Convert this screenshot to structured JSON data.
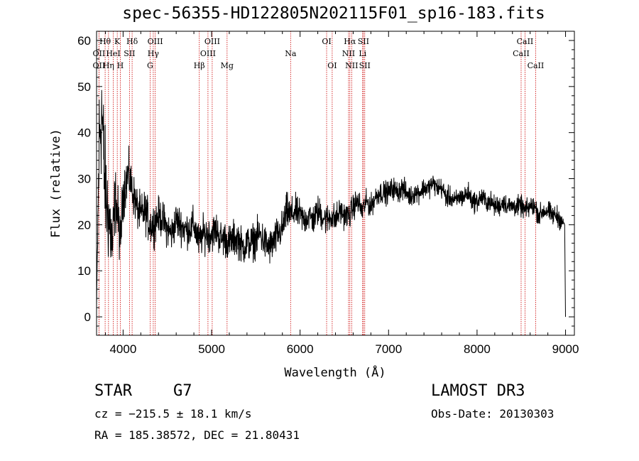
{
  "chart_data": {
    "type": "line",
    "title": "spec-56355-HD122805N202115F01_sp16-183.fits",
    "xlabel": "Wavelength (Å)",
    "ylabel": "Flux (relative)",
    "xlim": [
      3700,
      9100
    ],
    "ylim": [
      -4,
      62
    ],
    "xticks": [
      4000,
      5000,
      6000,
      7000,
      8000,
      9000
    ],
    "yticks": [
      0,
      10,
      20,
      30,
      40,
      50,
      60
    ],
    "grid": false,
    "series": [
      {
        "name": "flux",
        "x": [
          3700,
          3730,
          3760,
          3790,
          3820,
          3850,
          3880,
          3910,
          3940,
          3970,
          4000,
          4030,
          4060,
          4100,
          4150,
          4200,
          4250,
          4300,
          4340,
          4400,
          4450,
          4500,
          4550,
          4600,
          4650,
          4700,
          4750,
          4800,
          4861,
          4900,
          4950,
          5000,
          5050,
          5100,
          5150,
          5200,
          5250,
          5300,
          5350,
          5400,
          5450,
          5500,
          5550,
          5600,
          5650,
          5700,
          5750,
          5800,
          5850,
          5893,
          5950,
          6000,
          6050,
          6100,
          6150,
          6200,
          6250,
          6300,
          6350,
          6400,
          6450,
          6500,
          6563,
          6600,
          6650,
          6700,
          6750,
          6800,
          6850,
          6900,
          6950,
          7000,
          7050,
          7100,
          7150,
          7200,
          7250,
          7300,
          7350,
          7400,
          7450,
          7500,
          7550,
          7600,
          7650,
          7700,
          7750,
          7800,
          7850,
          7900,
          7950,
          8000,
          8050,
          8100,
          8150,
          8200,
          8250,
          8300,
          8350,
          8400,
          8450,
          8500,
          8550,
          8600,
          8650,
          8700,
          8750,
          8800,
          8850,
          8900,
          8950,
          8990,
          9000
        ],
        "y": [
          2,
          38,
          45,
          30,
          24,
          20,
          15,
          26,
          22,
          16,
          27,
          29,
          31,
          28,
          24,
          22,
          23,
          20,
          20,
          22,
          21,
          19,
          18,
          21,
          20,
          19,
          19,
          20,
          16,
          18,
          18,
          18,
          19,
          17,
          17,
          16,
          17,
          17,
          15,
          16,
          16,
          17,
          18,
          16,
          15,
          16,
          18,
          19,
          23,
          22,
          23,
          22,
          21,
          22,
          21,
          23,
          22,
          21,
          22,
          21,
          23,
          22,
          22,
          24,
          25,
          23,
          25,
          24,
          26,
          27,
          27,
          27,
          28,
          27,
          28,
          27,
          26,
          27,
          27,
          28,
          28,
          29,
          28,
          28,
          26,
          26,
          25,
          26,
          26,
          27,
          25,
          25,
          26,
          25,
          25,
          24,
          24,
          25,
          24,
          24,
          24,
          24,
          23,
          24,
          24,
          22,
          23,
          23,
          22,
          22,
          21,
          20,
          0
        ],
        "noise": [
          0,
          12,
          12,
          11,
          10,
          9,
          8,
          6,
          6,
          5,
          5,
          5,
          4.5,
          4,
          4,
          4,
          4,
          4,
          4,
          3.5,
          3.5,
          3.5,
          3.5,
          3.5,
          3.5,
          3.5,
          3.5,
          3.5,
          3.5,
          3.5,
          3.5,
          3.5,
          3.5,
          3.5,
          3.5,
          3.5,
          3.5,
          3.5,
          3.5,
          3.5,
          3.5,
          3.5,
          3.5,
          3.5,
          3.5,
          3.5,
          3.5,
          3.5,
          3.5,
          3.5,
          3,
          3,
          3,
          3,
          3,
          3,
          3,
          3,
          3,
          3,
          2.5,
          2.5,
          2.5,
          2.5,
          2.5,
          2.5,
          2.2,
          2.2,
          2.2,
          2.2,
          2.2,
          2.2,
          2.2,
          2.2,
          2.2,
          2.2,
          2,
          2,
          2,
          2,
          2,
          2,
          2,
          2,
          2,
          2,
          2,
          2,
          2,
          2,
          2,
          2,
          2,
          2,
          2,
          2,
          2,
          2,
          2,
          2,
          2,
          2,
          2,
          2,
          2,
          2,
          2,
          2,
          2,
          2,
          2,
          0,
          0
        ]
      }
    ],
    "lines": [
      {
        "label": "OII",
        "wave": 3727,
        "row": 2
      },
      {
        "label": "OII",
        "wave": 3727,
        "row": 3
      },
      {
        "label": "Hθ",
        "wave": 3797,
        "row": 1
      },
      {
        "label": "Hη",
        "wave": 3835,
        "row": 3
      },
      {
        "label": "HeI",
        "wave": 3889,
        "row": 2
      },
      {
        "label": "K",
        "wave": 3934,
        "row": 1
      },
      {
        "label": "H",
        "wave": 3968,
        "row": 3
      },
      {
        "label": "SII",
        "wave": 4072,
        "row": 2
      },
      {
        "label": "Hδ",
        "wave": 4102,
        "row": 1
      },
      {
        "label": "G",
        "wave": 4305,
        "row": 3
      },
      {
        "label": "Hγ",
        "wave": 4341,
        "row": 2
      },
      {
        "label": "OIII",
        "wave": 4363,
        "row": 1
      },
      {
        "label": "Hβ",
        "wave": 4861,
        "row": 3
      },
      {
        "label": "OIII",
        "wave": 4959,
        "row": 2
      },
      {
        "label": "OIII",
        "wave": 5007,
        "row": 1
      },
      {
        "label": "Mg",
        "wave": 5175,
        "row": 3
      },
      {
        "label": "Na",
        "wave": 5893,
        "row": 2
      },
      {
        "label": "OI",
        "wave": 6300,
        "row": 1
      },
      {
        "label": "OI",
        "wave": 6363,
        "row": 3
      },
      {
        "label": "NII",
        "wave": 6548,
        "row": 2
      },
      {
        "label": "Hα",
        "wave": 6563,
        "row": 1
      },
      {
        "label": "NII",
        "wave": 6583,
        "row": 3
      },
      {
        "label": "Li",
        "wave": 6707,
        "row": 2
      },
      {
        "label": "SII",
        "wave": 6716,
        "row": 1
      },
      {
        "label": "SII",
        "wave": 6731,
        "row": 3
      },
      {
        "label": "CaII",
        "wave": 8498,
        "row": 2
      },
      {
        "label": "CaII",
        "wave": 8542,
        "row": 1
      },
      {
        "label": "CaII",
        "wave": 8662,
        "row": 3
      }
    ],
    "line_color": "#cc0000",
    "trace_color": "#000000"
  },
  "footer": {
    "object_type": "STAR",
    "subclass": "G7",
    "redshift": "cz = −215.5 ± 18.1 km/s",
    "coords": "RA = 185.38572, DEC =  21.80431",
    "survey": "LAMOST DR3",
    "obs_date": "Obs-Date: 20130303"
  }
}
